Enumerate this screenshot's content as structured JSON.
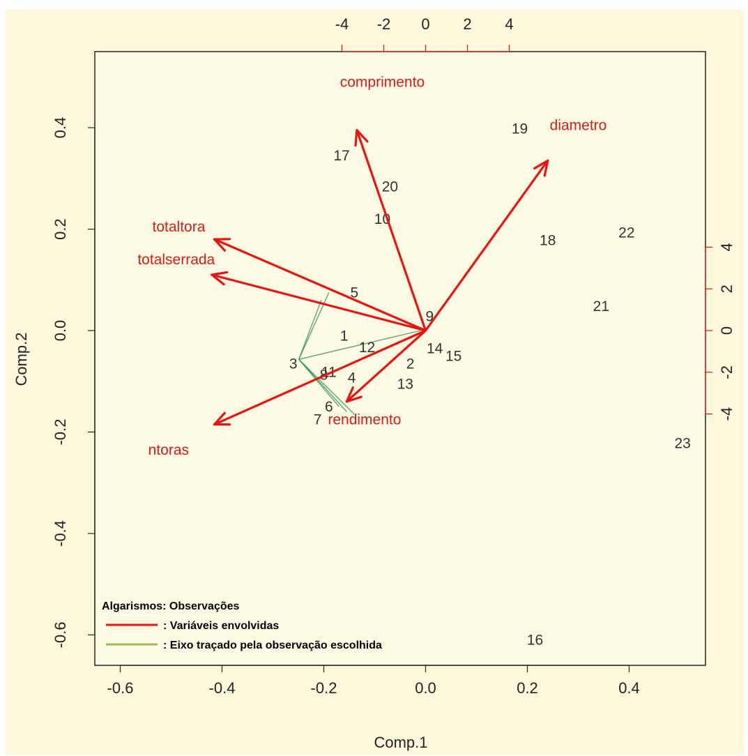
{
  "chart_data": {
    "type": "scatter",
    "title": "",
    "xlabel": "Comp.1",
    "ylabel": "Comp.2",
    "xlim": [
      -0.65,
      0.55
    ],
    "ylim": [
      -0.66,
      0.55
    ],
    "grid": false,
    "axes": {
      "bottom": {
        "ticks": [
          -0.6,
          -0.4,
          -0.2,
          0.0,
          0.2,
          0.4
        ],
        "labels": [
          "-0.6",
          "-0.4",
          "-0.2",
          "0.0",
          "0.2",
          "0.4"
        ]
      },
      "left": {
        "ticks": [
          -0.6,
          -0.4,
          -0.2,
          0.0,
          0.2,
          0.4
        ],
        "labels": [
          "-0.6",
          "-0.4",
          "-0.2",
          "0.0",
          "0.2",
          "0.4"
        ]
      },
      "top": {
        "ticks": [
          -4,
          -2,
          0,
          2,
          4
        ],
        "labels": [
          "-4",
          "-2",
          "0",
          "2",
          "4"
        ],
        "color": "#dd1a1a",
        "label_color": "#222222"
      },
      "right": {
        "ticks": [
          -4,
          -2,
          0,
          2,
          4
        ],
        "labels": [
          "-4",
          "-2",
          "0",
          "2",
          "4"
        ],
        "color": "#dd1a1a",
        "label_color": "#222222"
      }
    },
    "observations": [
      {
        "label": "1",
        "x": -0.16,
        "y": -0.01
      },
      {
        "label": "2",
        "x": -0.03,
        "y": -0.065
      },
      {
        "label": "3",
        "x": -0.26,
        "y": -0.065
      },
      {
        "label": "4",
        "x": -0.145,
        "y": -0.093
      },
      {
        "label": "5",
        "x": -0.14,
        "y": 0.075
      },
      {
        "label": "6",
        "x": -0.19,
        "y": -0.15
      },
      {
        "label": "7",
        "x": -0.212,
        "y": -0.175
      },
      {
        "label": "8",
        "x": -0.2,
        "y": -0.087
      },
      {
        "label": "9",
        "x": 0.008,
        "y": 0.028
      },
      {
        "label": "10",
        "x": -0.085,
        "y": 0.22
      },
      {
        "label": "11",
        "x": -0.19,
        "y": -0.082
      },
      {
        "label": "12",
        "x": -0.115,
        "y": -0.033
      },
      {
        "label": "13",
        "x": -0.04,
        "y": -0.105
      },
      {
        "label": "14",
        "x": 0.018,
        "y": -0.035
      },
      {
        "label": "15",
        "x": 0.055,
        "y": -0.05
      },
      {
        "label": "16",
        "x": 0.215,
        "y": -0.61
      },
      {
        "label": "17",
        "x": -0.165,
        "y": 0.345
      },
      {
        "label": "18",
        "x": 0.24,
        "y": 0.178
      },
      {
        "label": "19",
        "x": 0.185,
        "y": 0.398
      },
      {
        "label": "20",
        "x": -0.07,
        "y": 0.284
      },
      {
        "label": "21",
        "x": 0.345,
        "y": 0.048
      },
      {
        "label": "22",
        "x": 0.395,
        "y": 0.193
      },
      {
        "label": "23",
        "x": 0.505,
        "y": -0.222
      }
    ],
    "variables": [
      {
        "name": "comprimento",
        "x": -0.135,
        "y": 0.395,
        "color": "#ee1111"
      },
      {
        "name": "diametro",
        "x": 0.24,
        "y": 0.335,
        "color": "#ee1111"
      },
      {
        "name": "totaltora",
        "x": -0.415,
        "y": 0.18,
        "color": "#ee1111"
      },
      {
        "name": "totalserrada",
        "x": -0.42,
        "y": 0.11,
        "color": "#ee1111"
      },
      {
        "name": "rendimento",
        "x": -0.155,
        "y": -0.14,
        "color": "#ee1111"
      },
      {
        "name": "ntoras",
        "x": -0.415,
        "y": -0.185,
        "color": "#ee1111"
      }
    ],
    "legend": {
      "title": "Algarismos: Observações",
      "entries": [
        {
          "label": ": Variáveis envolvidas",
          "color": "#ee1111"
        },
        {
          "label": ": Eixo traçado pela observação escolhida",
          "color": "#9bbb59"
        }
      ]
    },
    "highlighted_observation": "3",
    "projection_axes_color": "#3a9a5a",
    "background_color": "#fdf8dc"
  }
}
